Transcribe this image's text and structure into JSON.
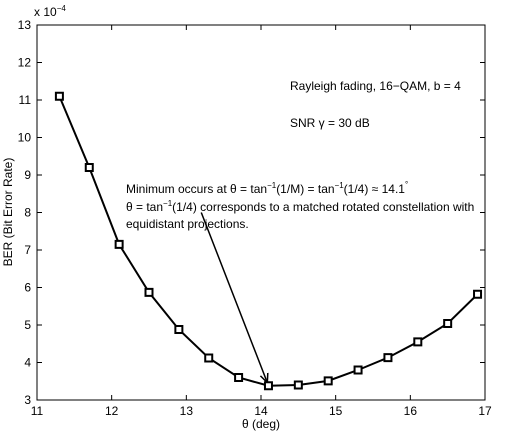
{
  "chart_data": {
    "type": "line",
    "x": [
      11.3,
      11.7,
      12.1,
      12.5,
      12.9,
      13.3,
      13.7,
      14.1,
      14.5,
      14.9,
      15.3,
      15.7,
      16.1,
      16.5,
      16.9
    ],
    "series": [
      {
        "values": [
          11.1,
          9.2,
          7.15,
          5.87,
          4.88,
          4.12,
          3.6,
          3.38,
          3.4,
          3.51,
          3.8,
          4.13,
          4.55,
          5.04,
          5.82
        ],
        "marker": "square",
        "color": "#000000"
      }
    ],
    "xlim": [
      11,
      17
    ],
    "ylim": [
      3,
      13
    ],
    "x_ticks": [
      "11",
      "12",
      "13",
      "14",
      "15",
      "16",
      "17"
    ],
    "y_ticks": [
      "3",
      "4",
      "5",
      "6",
      "7",
      "8",
      "9",
      "10",
      "11",
      "12",
      "13"
    ],
    "y_multiplier": "x 10",
    "y_multiplier_exponent": "−4",
    "xlabel": "θ (deg)",
    "ylabel": "BER (Bit Error Rate)",
    "grid": false,
    "annotations": {
      "setup_line1": "Rayleigh fading, 16−QAM,  b = 4",
      "setup_line2": "SNR γ = 30 dB",
      "min_line1_a": "Minimum occurs at θ = tan",
      "min_line1_sup1": "−1",
      "min_line1_b": "(1/M) = tan",
      "min_line1_sup2": "−1",
      "min_line1_c": "(1/4) ≈ 14.1",
      "min_line1_deg": "°",
      "min_line2_a": "θ = tan",
      "min_line2_sup": "−1",
      "min_line2_b": "(1/4) corresponds to a matched rotated constellation with",
      "min_line3": "equidistant projections."
    },
    "arrow": {
      "from": [
        13.2,
        8.0
      ],
      "to": [
        14.08,
        3.38
      ]
    }
  }
}
